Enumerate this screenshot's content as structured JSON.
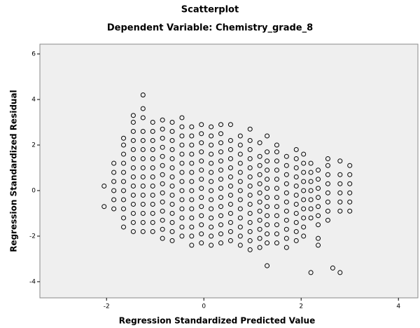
{
  "chart_data": {
    "type": "scatter",
    "title": "Scatterplot",
    "subtitle": "Dependent Variable: Chemistry_grade_8",
    "x_label": "Regression Standardized Predicted Value",
    "y_label": "Regression Standardized Residual",
    "xlim": [
      -3.37,
      4.4
    ],
    "ylim": [
      -4.71,
      6.43
    ],
    "xticks": [
      -2,
      0,
      2,
      4
    ],
    "yticks": [
      -4,
      -2,
      0,
      2,
      4,
      6
    ],
    "grid": false,
    "color": "#000000",
    "x": [
      -2.05,
      -2.05,
      -1.85,
      -1.85,
      -1.85,
      -1.85,
      -1.85,
      -1.85,
      -1.65,
      -1.65,
      -1.65,
      -1.65,
      -1.65,
      -1.65,
      -1.65,
      -1.65,
      -1.65,
      -1.65,
      -1.65,
      -1.45,
      -1.45,
      -1.45,
      -1.45,
      -1.45,
      -1.45,
      -1.45,
      -1.45,
      -1.45,
      -1.45,
      -1.45,
      -1.45,
      -1.45,
      -1.45,
      -1.25,
      -1.25,
      -1.25,
      -1.25,
      -1.25,
      -1.25,
      -1.25,
      -1.25,
      -1.25,
      -1.25,
      -1.25,
      -1.25,
      -1.25,
      -1.25,
      -1.25,
      -1.05,
      -1.05,
      -1.05,
      -1.05,
      -1.05,
      -1.05,
      -1.05,
      -1.05,
      -1.05,
      -1.05,
      -1.05,
      -1.05,
      -1.05,
      -0.85,
      -0.85,
      -0.85,
      -0.85,
      -0.85,
      -0.85,
      -0.85,
      -0.85,
      -0.85,
      -0.85,
      -0.85,
      -0.85,
      -0.85,
      -0.85,
      -0.65,
      -0.65,
      -0.65,
      -0.65,
      -0.65,
      -0.65,
      -0.65,
      -0.65,
      -0.65,
      -0.65,
      -0.65,
      -0.65,
      -0.65,
      -0.65,
      -0.45,
      -0.45,
      -0.45,
      -0.45,
      -0.45,
      -0.45,
      -0.45,
      -0.45,
      -0.45,
      -0.45,
      -0.45,
      -0.45,
      -0.45,
      -0.45,
      -0.25,
      -0.25,
      -0.25,
      -0.25,
      -0.25,
      -0.25,
      -0.25,
      -0.25,
      -0.25,
      -0.25,
      -0.25,
      -0.25,
      -0.25,
      -0.25,
      -0.05,
      -0.05,
      -0.05,
      -0.05,
      -0.05,
      -0.05,
      -0.05,
      -0.05,
      -0.05,
      -0.05,
      -0.05,
      -0.05,
      -0.05,
      -0.05,
      0.15,
      0.15,
      0.15,
      0.15,
      0.15,
      0.15,
      0.15,
      0.15,
      0.15,
      0.15,
      0.15,
      0.15,
      0.15,
      0.15,
      0.35,
      0.35,
      0.35,
      0.35,
      0.35,
      0.35,
      0.35,
      0.35,
      0.35,
      0.35,
      0.35,
      0.35,
      0.35,
      0.35,
      0.55,
      0.55,
      0.55,
      0.55,
      0.55,
      0.55,
      0.55,
      0.55,
      0.55,
      0.55,
      0.55,
      0.55,
      0.55,
      0.75,
      0.75,
      0.75,
      0.75,
      0.75,
      0.75,
      0.75,
      0.75,
      0.75,
      0.75,
      0.75,
      0.75,
      0.75,
      0.95,
      0.95,
      0.95,
      0.95,
      0.95,
      0.95,
      0.95,
      0.95,
      0.95,
      0.95,
      0.95,
      0.95,
      0.95,
      0.95,
      1.15,
      1.15,
      1.15,
      1.15,
      1.15,
      1.15,
      1.15,
      1.15,
      1.15,
      1.15,
      1.15,
      1.15,
      1.3,
      1.3,
      1.3,
      1.3,
      1.3,
      1.3,
      1.3,
      1.3,
      1.3,
      1.3,
      1.3,
      1.3,
      1.3,
      1.5,
      1.5,
      1.5,
      1.5,
      1.5,
      1.5,
      1.5,
      1.5,
      1.5,
      1.5,
      1.5,
      1.5,
      1.7,
      1.7,
      1.7,
      1.7,
      1.7,
      1.7,
      1.7,
      1.7,
      1.7,
      1.7,
      1.7,
      1.9,
      1.9,
      1.9,
      1.9,
      1.9,
      1.9,
      1.9,
      1.9,
      1.9,
      1.9,
      1.9,
      2.05,
      2.05,
      2.05,
      2.05,
      2.05,
      2.05,
      2.05,
      2.05,
      2.05,
      2.05,
      2.2,
      2.2,
      2.2,
      2.2,
      2.2,
      2.2,
      2.2,
      2.2,
      2.35,
      2.35,
      2.35,
      2.35,
      2.35,
      2.35,
      2.35,
      2.35,
      2.35,
      2.55,
      2.55,
      2.55,
      2.55,
      2.55,
      2.55,
      2.55,
      2.55,
      2.65,
      2.8,
      2.8,
      2.8,
      2.8,
      2.8,
      2.8,
      2.8,
      3.0,
      3.0,
      3.0,
      3.0,
      3.0,
      3.0
    ],
    "y": [
      0.2,
      -0.7,
      -0.8,
      -0.4,
      0,
      0.4,
      0.8,
      1.2,
      -1.6,
      -1.2,
      -0.8,
      -0.4,
      0,
      0.4,
      0.8,
      1.2,
      1.6,
      2.0,
      2.3,
      -1.8,
      -1.4,
      -1,
      -0.6,
      -0.2,
      0.2,
      0.6,
      1,
      1.4,
      1.8,
      2.2,
      2.6,
      3.0,
      3.3,
      -1.8,
      -1.4,
      -1,
      -0.6,
      -0.2,
      0.2,
      0.6,
      1,
      1.4,
      1.8,
      2.2,
      2.6,
      3.2,
      3.6,
      4.2,
      -1.8,
      -1.4,
      -1,
      -0.6,
      -0.2,
      0.2,
      0.6,
      1,
      1.4,
      1.8,
      2.2,
      2.6,
      3.0,
      -2.1,
      -1.7,
      -1.3,
      -0.9,
      -0.5,
      -0.1,
      0.3,
      0.7,
      1.1,
      1.5,
      1.9,
      2.3,
      2.7,
      3.1,
      -2.2,
      -1.8,
      -1.4,
      -1,
      -0.6,
      -0.2,
      0.2,
      0.6,
      1,
      1.4,
      1.8,
      2.2,
      2.6,
      3.0,
      -2,
      -1.6,
      -1.2,
      -0.8,
      -0.4,
      0,
      0.4,
      0.8,
      1.2,
      1.6,
      2,
      2.4,
      2.8,
      3.2,
      -2.4,
      -2,
      -1.6,
      -1.2,
      -0.8,
      -0.4,
      0,
      0.4,
      0.8,
      1.2,
      1.6,
      2,
      2.4,
      2.8,
      -2.3,
      -1.9,
      -1.5,
      -1.1,
      -0.7,
      -0.3,
      0.1,
      0.5,
      0.9,
      1.3,
      1.7,
      2.1,
      2.5,
      2.9,
      -2.4,
      -2,
      -1.6,
      -1.2,
      -0.8,
      -0.4,
      0,
      0.4,
      0.8,
      1.2,
      1.6,
      2,
      2.4,
      2.8,
      -2.3,
      -1.9,
      -1.5,
      -1.1,
      -0.7,
      -0.3,
      0.1,
      0.5,
      0.9,
      1.3,
      1.7,
      2.1,
      2.5,
      2.9,
      -2.2,
      -1.8,
      -1.4,
      -1,
      -0.6,
      -0.2,
      0.2,
      0.6,
      1,
      1.4,
      1.8,
      2.2,
      2.9,
      -2.4,
      -2,
      -1.6,
      -1.2,
      -0.8,
      -0.4,
      0,
      0.4,
      0.8,
      1.2,
      1.6,
      2,
      2.4,
      -2.6,
      -2.2,
      -1.8,
      -1.4,
      -1,
      -0.6,
      -0.2,
      0.2,
      0.6,
      1,
      1.4,
      1.8,
      2.2,
      2.7,
      -2.5,
      -2.1,
      -1.7,
      -1.3,
      -0.9,
      -0.5,
      -0.1,
      0.3,
      0.7,
      1.1,
      1.5,
      2.1,
      -3.3,
      -2.3,
      -1.9,
      -1.5,
      -1.1,
      -0.7,
      -0.3,
      0.1,
      0.5,
      0.9,
      1.3,
      1.7,
      2.4,
      -2.3,
      -1.9,
      -1.5,
      -1.1,
      -0.7,
      -0.3,
      0.1,
      0.5,
      0.9,
      1.3,
      1.7,
      2.0,
      -2.5,
      -2.1,
      -1.7,
      -1.3,
      -0.9,
      -0.5,
      -0.1,
      0.3,
      0.7,
      1.1,
      1.5,
      -2.2,
      -1.8,
      -1.4,
      -1,
      -0.6,
      -0.2,
      0.2,
      0.6,
      1,
      1.4,
      1.8,
      -2.0,
      -1.6,
      -1.2,
      -0.8,
      -0.4,
      0,
      0.4,
      0.8,
      1.2,
      1.6,
      -3.6,
      -1.2,
      -0.8,
      -0.4,
      0,
      0.4,
      0.8,
      1.2,
      -2.4,
      -2.1,
      -1.5,
      -1.1,
      -0.7,
      -0.3,
      0.1,
      0.5,
      0.9,
      -1.3,
      -0.9,
      -0.5,
      -0.1,
      0.3,
      0.7,
      1.1,
      1.4,
      -3.4,
      -3.6,
      -0.9,
      -0.5,
      -0.1,
      0.3,
      0.7,
      1.3,
      -0.9,
      -0.5,
      -0.1,
      0.3,
      0.7,
      1.1
    ]
  }
}
